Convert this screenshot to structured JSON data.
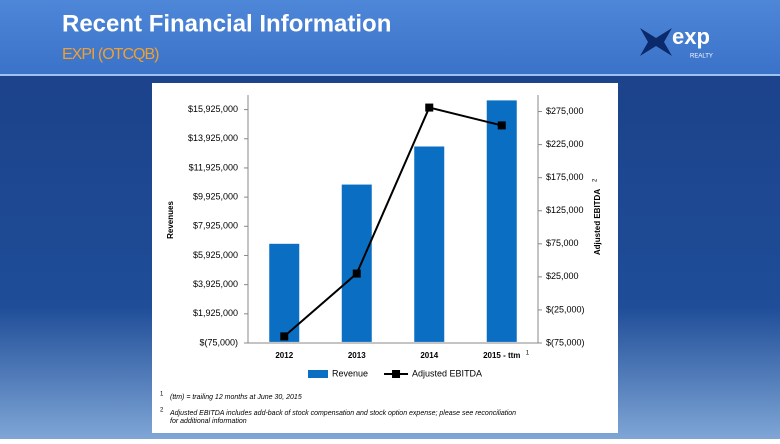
{
  "header": {
    "title": "Recent Financial Information",
    "subtitle": "EXPI (OTCQB)",
    "logo": "exp",
    "logo_sub": "REALTY"
  },
  "chart_data": {
    "type": "bar",
    "categories": [
      "2012",
      "2013",
      "2014",
      "2015 - ttm"
    ],
    "category_notes": [
      null,
      null,
      null,
      "1"
    ],
    "ylabel": "Revenues",
    "y2label": "Adjusted EBITDA",
    "y2label_note": "2",
    "series": [
      {
        "name": "Revenue",
        "type": "bar",
        "color": "#0a6fc2",
        "values": [
          6725000,
          10785000,
          13395000,
          16555000
        ]
      },
      {
        "name": "Adjusted EBITDA",
        "type": "line",
        "axis": "y2",
        "color": "#000000",
        "values": [
          -65000,
          30000,
          281000,
          254000
        ]
      }
    ],
    "ylim": [
      -75000,
      16925000
    ],
    "yticks": [
      {
        "value": -75000,
        "label": "$(75,000)"
      },
      {
        "value": 1925000,
        "label": "$1,925,000"
      },
      {
        "value": 3925000,
        "label": "$3,925,000"
      },
      {
        "value": 5925000,
        "label": "$5,925,000"
      },
      {
        "value": 7925000,
        "label": "$7,925,000"
      },
      {
        "value": 9925000,
        "label": "$9,925,000"
      },
      {
        "value": 11925000,
        "label": "$11,925,000"
      },
      {
        "value": 13925000,
        "label": "$13,925,000"
      },
      {
        "value": 15925000,
        "label": "$15,925,000"
      }
    ],
    "y2lim": [
      -75000,
      300000
    ],
    "y2ticks": [
      {
        "value": -75000,
        "label": "$(75,000)"
      },
      {
        "value": -25000,
        "label": "$(25,000)"
      },
      {
        "value": 25000,
        "label": "$25,000"
      },
      {
        "value": 75000,
        "label": "$75,000"
      },
      {
        "value": 125000,
        "label": "$125,000"
      },
      {
        "value": 175000,
        "label": "$175,000"
      },
      {
        "value": 225000,
        "label": "$225,000"
      },
      {
        "value": 275000,
        "label": "$275,000"
      }
    ],
    "legend": "bottom"
  },
  "footnotes": [
    {
      "mark": "1",
      "text": "(ttm) = trailing 12 months at June 30, 2015"
    },
    {
      "mark": "2",
      "text": "Adjusted EBITDA includes add-back of stock compensation and stock option expense; please see reconciliation"
    },
    {
      "mark": null,
      "text": "for additional information"
    }
  ]
}
